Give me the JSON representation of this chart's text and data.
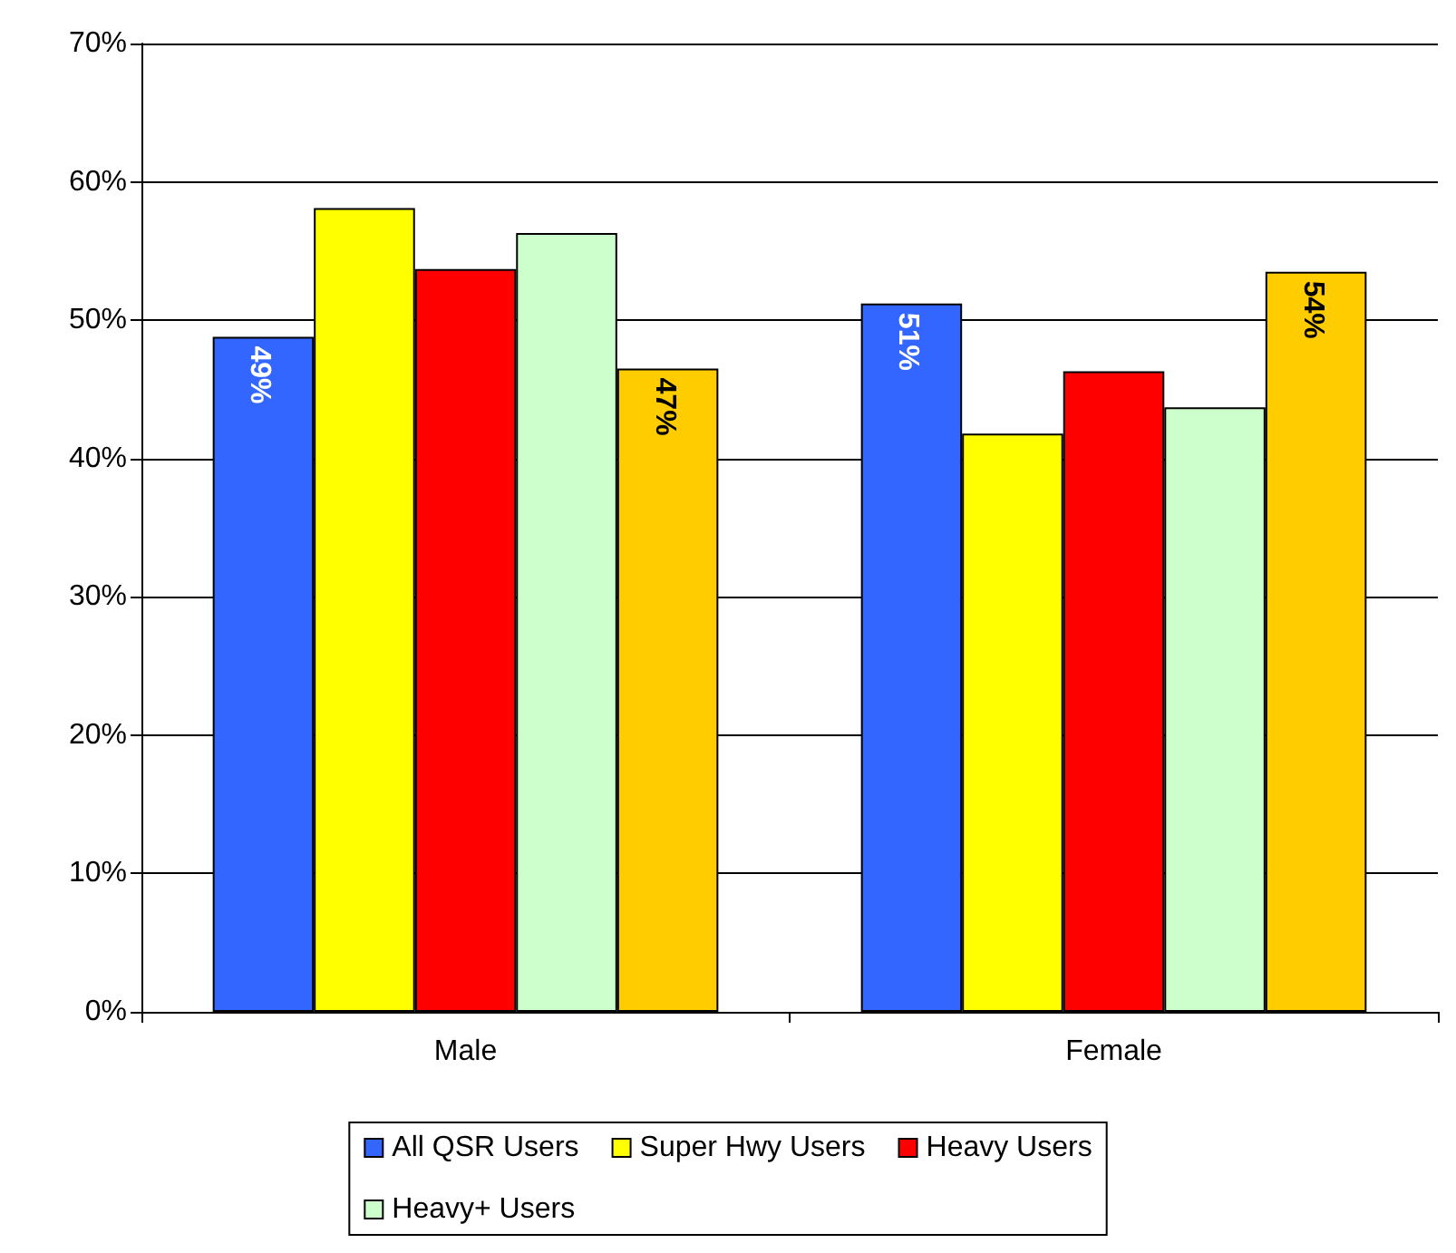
{
  "chart_data": {
    "type": "bar",
    "categories": [
      "Male",
      "Female"
    ],
    "series": [
      {
        "name": "All QSR Users",
        "color": "#3366ff",
        "values": [
          48.8,
          51.2
        ],
        "value_labels": [
          "49%",
          "51%"
        ]
      },
      {
        "name": "Super Hwy Users",
        "color": "#ffff00",
        "values": [
          58.1,
          41.8
        ],
        "value_labels": [
          null,
          null
        ]
      },
      {
        "name": "Heavy Users",
        "color": "#ff0000",
        "values": [
          53.7,
          46.3
        ],
        "value_labels": [
          null,
          null
        ]
      },
      {
        "name": "Heavy+ Users",
        "color": "#ccffcc",
        "values": [
          56.3,
          43.7
        ],
        "value_labels": [
          null,
          null
        ]
      },
      {
        "color": "#ffcc00",
        "values": [
          46.5,
          53.5
        ],
        "value_labels": [
          "47%",
          "54%"
        ]
      }
    ],
    "ylim": [
      0,
      70
    ],
    "yticks": [
      {
        "value": 0,
        "label": "0%"
      },
      {
        "value": 10,
        "label": "10%"
      },
      {
        "value": 20,
        "label": "20%"
      },
      {
        "value": 30,
        "label": "30%"
      },
      {
        "value": 40,
        "label": "40%"
      },
      {
        "value": 50,
        "label": "50%"
      },
      {
        "value": 60,
        "label": "60%"
      },
      {
        "value": 70,
        "label": "70%"
      }
    ],
    "grid": "y",
    "legend": "bottom"
  }
}
